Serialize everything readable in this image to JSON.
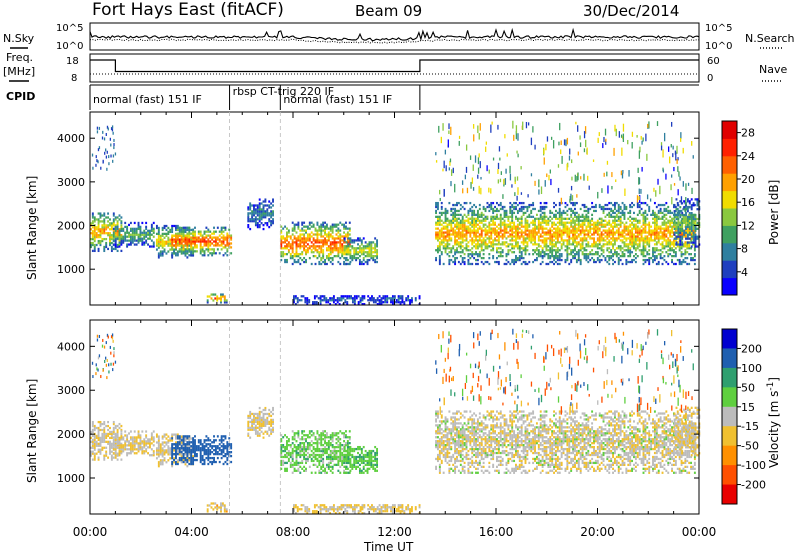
{
  "header": {
    "radar": "Fort Hays East (fitACF)",
    "beam": "Beam 09",
    "date": "30/Dec/2014"
  },
  "noise_panel": {
    "left_label": "N.Sky",
    "right_label": "N.Search",
    "left_ticks": [
      "10^5",
      "10^0"
    ],
    "right_ticks": [
      "10^5",
      "10^0"
    ]
  },
  "freq_panel": {
    "left_label_line1": "Freq.",
    "left_label_line2": "[MHz]",
    "right_label": "Nave",
    "left_ticks": [
      "18",
      "8"
    ],
    "right_ticks": [
      "60",
      "0"
    ],
    "freq_mhz": [
      [
        0,
        18
      ],
      [
        1,
        18
      ],
      [
        1,
        10.8
      ],
      [
        13,
        10.8
      ],
      [
        13,
        18
      ],
      [
        24,
        18
      ]
    ],
    "nave": [
      [
        0,
        0
      ],
      [
        24,
        0
      ]
    ]
  },
  "cpid": {
    "label": "CPID",
    "segments": [
      {
        "start_hour": 0,
        "end_hour": 5.5,
        "text": "normal (fast) 151 IF"
      },
      {
        "start_hour": 5.5,
        "end_hour": 7.5,
        "text": "rbsp CT-trig 220 IF"
      },
      {
        "start_hour": 7.5,
        "end_hour": 13,
        "text": "normal (fast) 151 IF"
      }
    ]
  },
  "axes": {
    "ylabel": "Slant Range [km]",
    "xlabel": "Time UT",
    "yticks": [
      "1000",
      "2000",
      "3000",
      "4000"
    ],
    "xticks": [
      "00:00",
      "04:00",
      "08:00",
      "12:00",
      "16:00",
      "20:00",
      "00:00"
    ],
    "x_range_hours": [
      0,
      24
    ],
    "y_range_km": [
      180,
      4600
    ]
  },
  "power_colorbar": {
    "label": "Power [dB]",
    "ticks": [
      "4",
      "8",
      "12",
      "16",
      "20",
      "24",
      "28"
    ],
    "colors": [
      "#0a00ff",
      "#1f3fbf",
      "#2f7f9f",
      "#3fa060",
      "#8ac83f",
      "#f0dc00",
      "#ffa000",
      "#ff6000",
      "#ff2000",
      "#e00000"
    ]
  },
  "velocity_colorbar": {
    "label": "Velocity [m s^-1]",
    "ticks": [
      "200",
      "100",
      "50",
      "15",
      "-15",
      "-50",
      "-100",
      "-200"
    ],
    "colors": [
      "#0000d0",
      "#1f5fb0",
      "#2f9f6f",
      "#5fcf3f",
      "#bcbcbc",
      "#f0c030",
      "#ff9000",
      "#ff5000",
      "#e80000"
    ]
  },
  "chart_data": {
    "type": "heatmap",
    "title": "Fort Hays East (fitACF) Beam 09 30/Dec/2014",
    "xlabel": "Time UT",
    "ylabel": "Slant Range [km]",
    "xlim_hours": [
      0,
      24
    ],
    "ylim_km": [
      180,
      4600
    ],
    "power_db_range": [
      0,
      30
    ],
    "velocity_range": [
      -250,
      250
    ],
    "scatter_regions": [
      {
        "start_hour": 0.0,
        "end_hour": 1.2,
        "range_km": [
          1400,
          2300
        ],
        "peak_power_db": 20,
        "velocity": -10
      },
      {
        "start_hour": 0.9,
        "end_hour": 2.5,
        "range_km": [
          1500,
          2050
        ],
        "peak_power_db": 12,
        "velocity": -15
      },
      {
        "start_hour": 2.6,
        "end_hour": 4.1,
        "range_km": [
          1250,
          2000
        ],
        "peak_power_db": 18,
        "velocity": -12
      },
      {
        "start_hour": 3.2,
        "end_hour": 5.6,
        "range_km": [
          1300,
          1950
        ],
        "peak_power_db": 24,
        "velocity": 150
      },
      {
        "start_hour": 4.6,
        "end_hour": 5.4,
        "range_km": [
          220,
          420
        ],
        "peak_power_db": 24,
        "velocity": -30
      },
      {
        "start_hour": 6.2,
        "end_hour": 7.2,
        "range_km": [
          1900,
          2600
        ],
        "peak_power_db": 8,
        "velocity": -10
      },
      {
        "start_hour": 7.5,
        "end_hour": 10.2,
        "range_km": [
          1100,
          2050
        ],
        "peak_power_db": 24,
        "velocity": 30
      },
      {
        "start_hour": 10.0,
        "end_hour": 11.3,
        "range_km": [
          1100,
          1700
        ],
        "peak_power_db": 16,
        "velocity": 40
      },
      {
        "start_hour": 8.0,
        "end_hour": 13.0,
        "range_km": [
          180,
          400
        ],
        "peak_power_db": 6,
        "velocity": -20
      },
      {
        "start_hour": 13.6,
        "end_hour": 23.8,
        "range_km": [
          1100,
          2500
        ],
        "peak_power_db": 20,
        "velocity": -5
      },
      {
        "start_hour": 23.0,
        "end_hour": 24.0,
        "range_km": [
          1500,
          2600
        ],
        "peak_power_db": 12,
        "velocity": -10
      }
    ]
  }
}
